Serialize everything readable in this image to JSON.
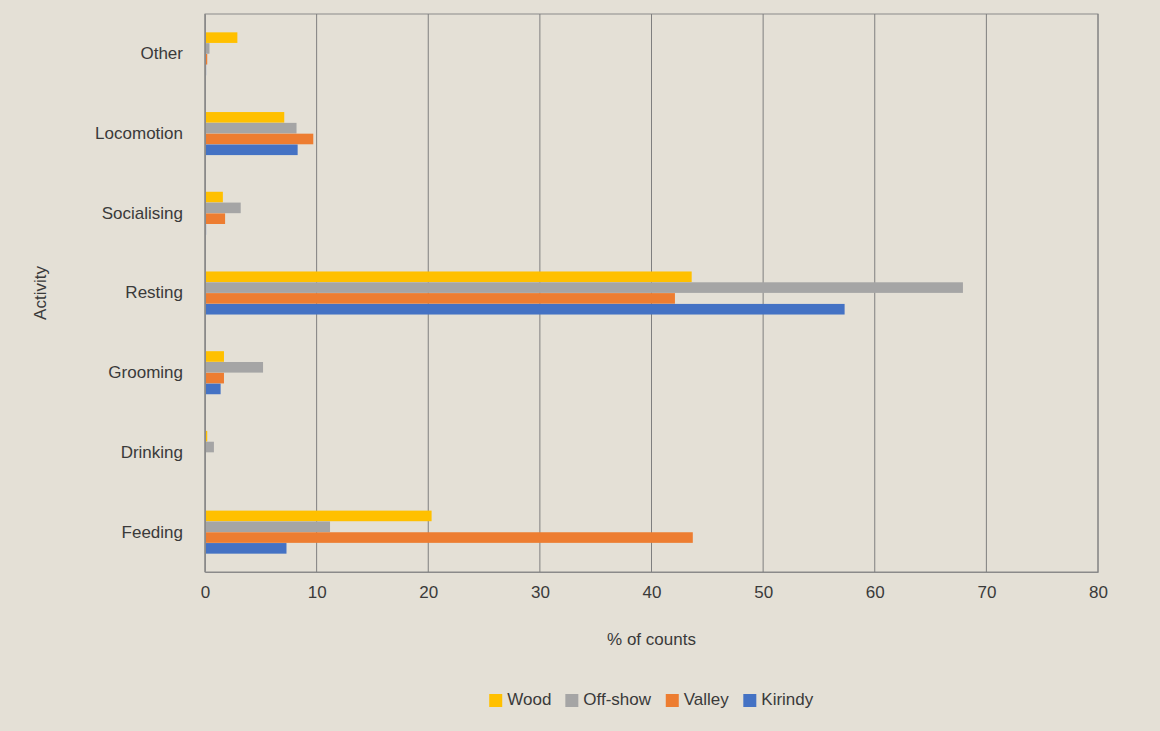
{
  "chart_data": {
    "type": "bar",
    "orientation": "horizontal",
    "x_label": "% of counts",
    "y_label": "Activity",
    "categories": [
      "Feeding",
      "Drinking",
      "Grooming",
      "Resting",
      "Socialising",
      "Locomotion",
      "Other"
    ],
    "series": [
      {
        "name": "Wood",
        "color": "#ffc000",
        "values": [
          20.3,
          0.2,
          1.7,
          43.6,
          1.6,
          7.1,
          2.9
        ]
      },
      {
        "name": "Off-show",
        "color": "#a5a5a5",
        "values": [
          11.2,
          0.8,
          5.2,
          67.9,
          3.2,
          8.2,
          0.4
        ]
      },
      {
        "name": "Valley",
        "color": "#ed7d31",
        "values": [
          43.7,
          0,
          1.7,
          42.1,
          1.8,
          9.7,
          0.2
        ]
      },
      {
        "name": "Kirindy",
        "color": "#4472c4",
        "values": [
          7.3,
          0,
          1.4,
          57.3,
          0.1,
          8.3,
          0.1
        ]
      }
    ],
    "xlim": [
      0,
      80
    ],
    "xticks": [
      0,
      10,
      20,
      30,
      40,
      50,
      60,
      70,
      80
    ],
    "grid": true,
    "legend": "bottom"
  }
}
